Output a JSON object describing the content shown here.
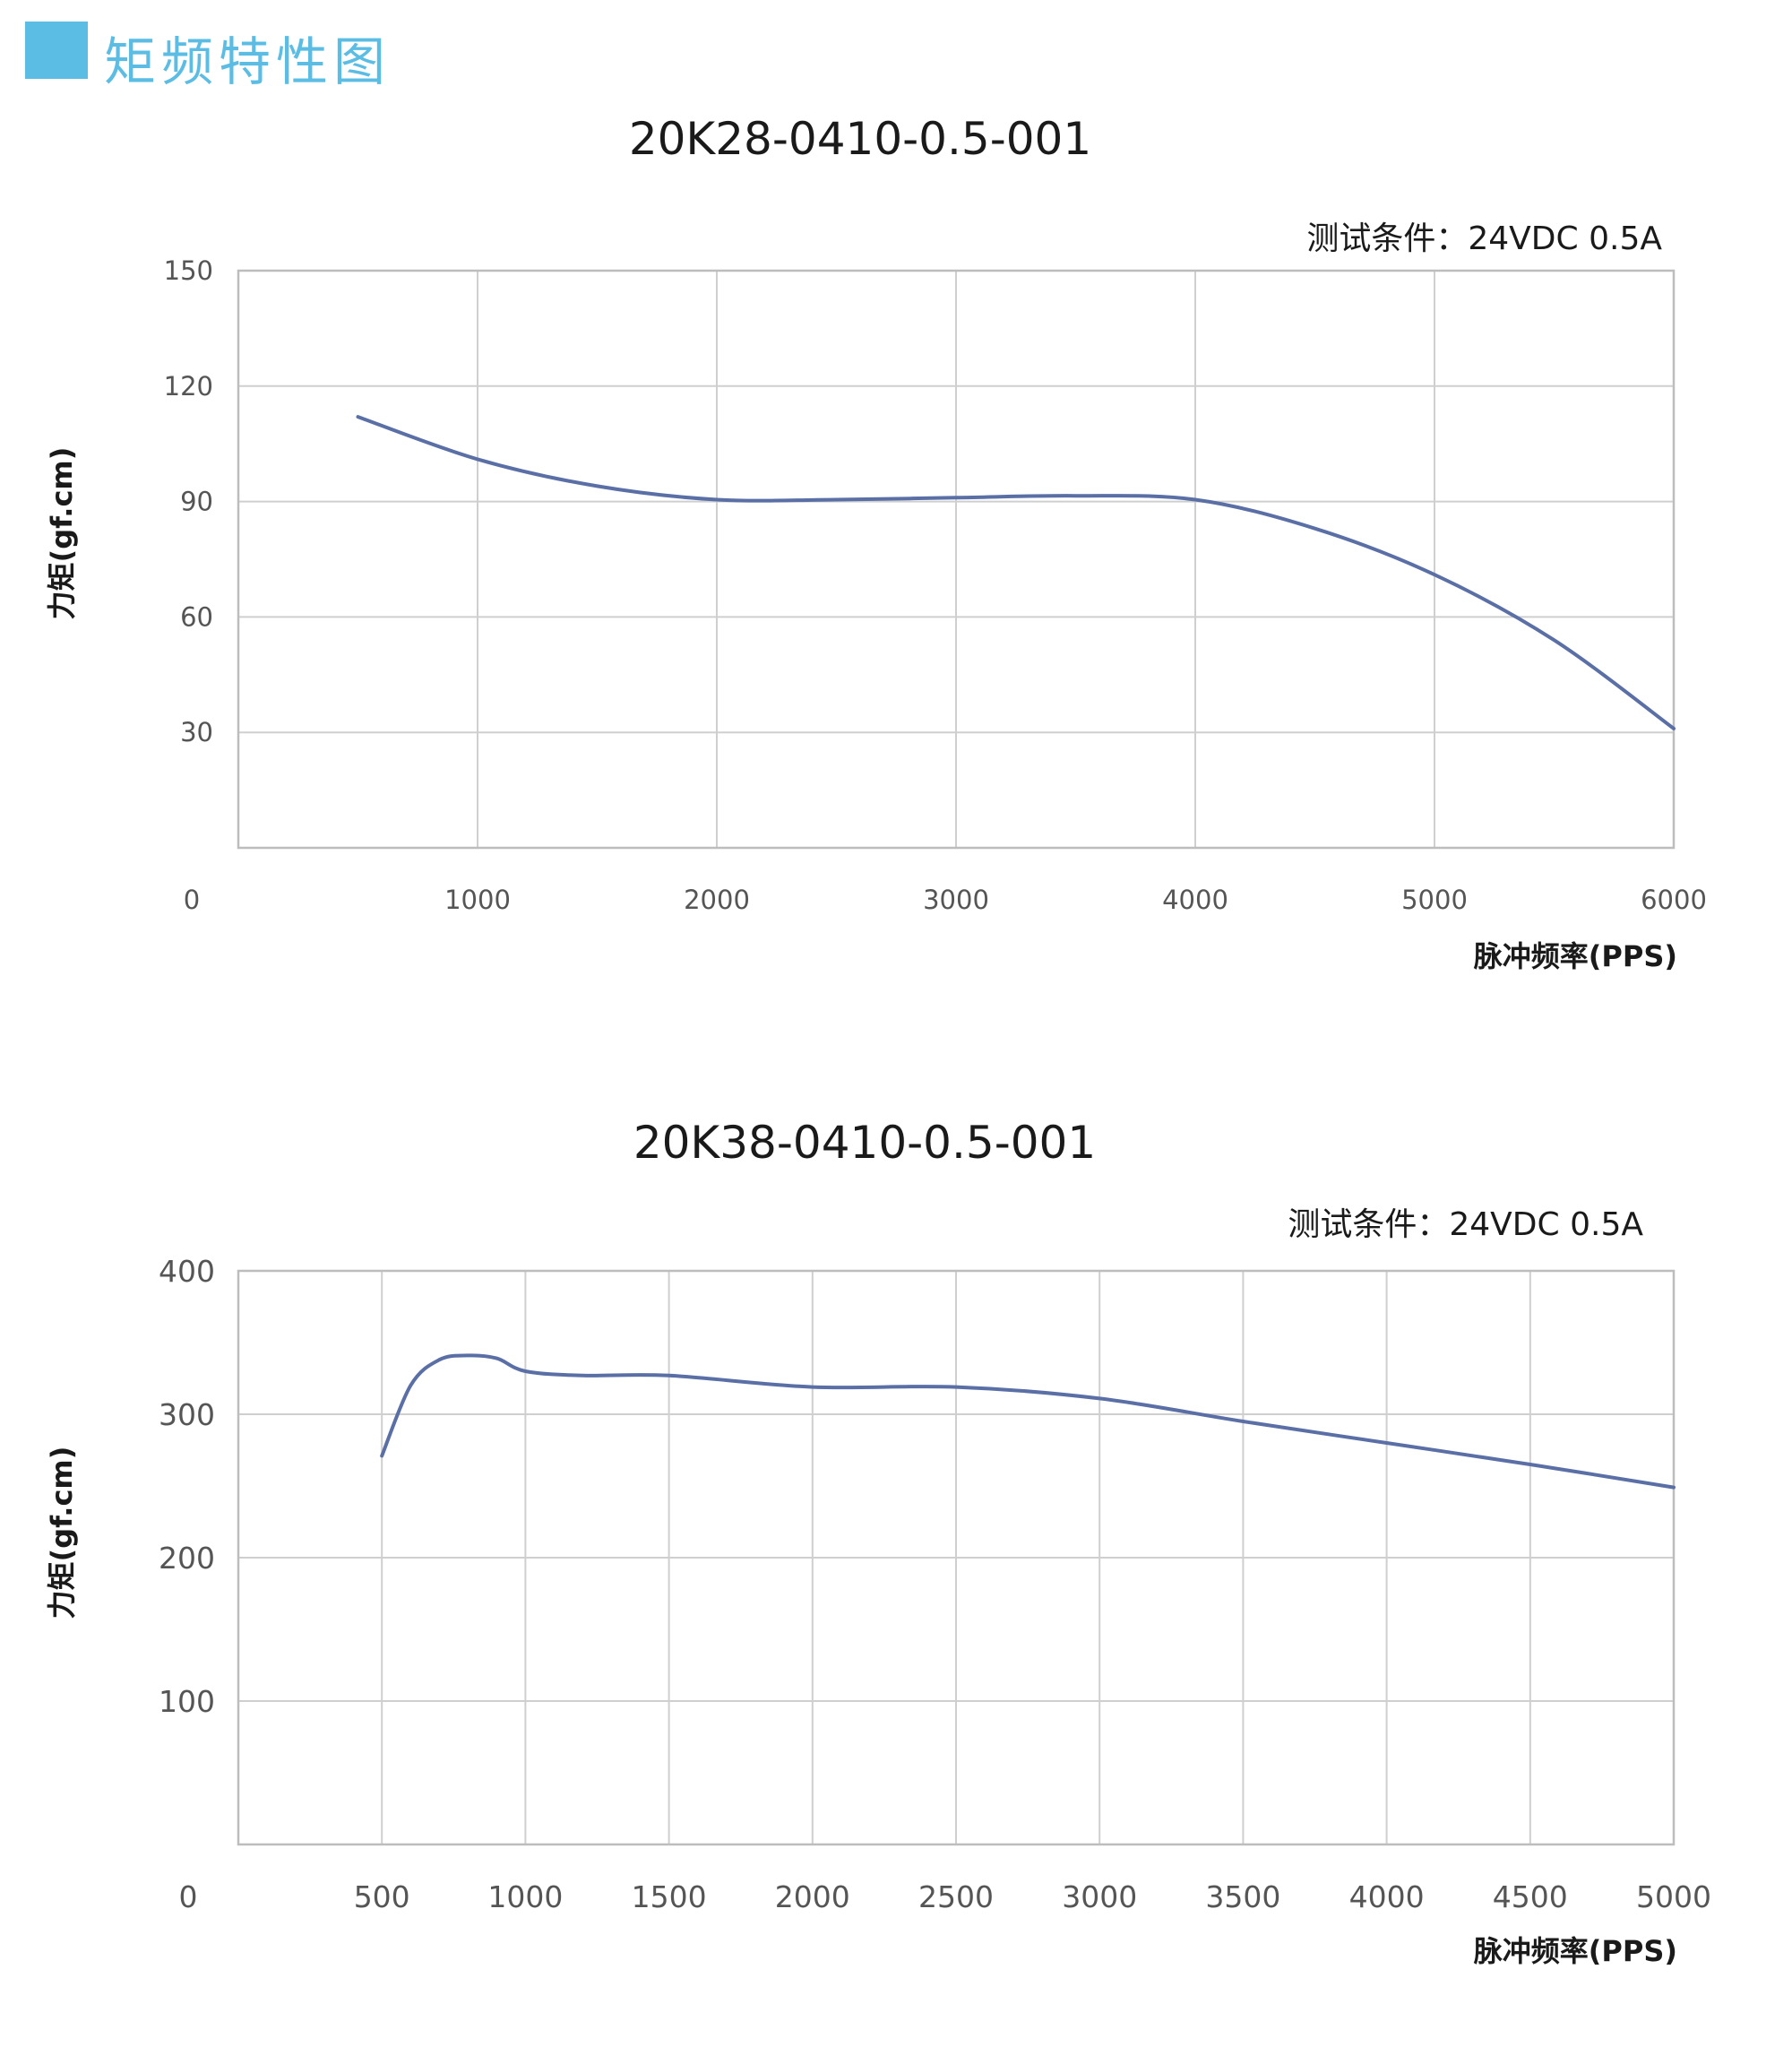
{
  "header": {
    "title": "矩频特性图",
    "color": "#5bbde4"
  },
  "chart_data": [
    {
      "type": "line",
      "title": "20K28-0410-0.5-001",
      "subtitle": "测试条件：24VDC    0.5A",
      "xlabel": "脉冲频率(PPS)",
      "ylabel": "力矩(gf.cm)",
      "xlim": [
        0,
        6000
      ],
      "ylim": [
        0,
        150
      ],
      "x_ticks": [
        0,
        1000,
        2000,
        3000,
        4000,
        5000,
        6000
      ],
      "y_ticks": [
        30,
        60,
        90,
        120,
        150
      ],
      "grid": true,
      "line_color": "#5a6fa5",
      "series": [
        {
          "x": [
            500,
            1000,
            1500,
            2000,
            2500,
            3000,
            3500,
            4000,
            4500,
            5000,
            5500,
            6000
          ],
          "values": [
            112,
            101,
            94,
            90.5,
            90.5,
            91,
            91.5,
            90.5,
            83,
            71,
            54,
            31
          ]
        }
      ]
    },
    {
      "type": "line",
      "title": "20K38-0410-0.5-001",
      "subtitle": "测试条件：24VDC    0.5A",
      "xlabel": "脉冲频率(PPS)",
      "ylabel": "力矩(gf.cm)",
      "xlim": [
        0,
        5000
      ],
      "ylim": [
        0,
        400
      ],
      "x_ticks": [
        0,
        500,
        1000,
        1500,
        2000,
        2500,
        3000,
        3500,
        4000,
        4500,
        5000
      ],
      "y_ticks": [
        100,
        200,
        300,
        400
      ],
      "grid": true,
      "line_color": "#5a6fa5",
      "series": [
        {
          "x": [
            500,
            600,
            700,
            800,
            900,
            1000,
            1200,
            1500,
            2000,
            2500,
            3000,
            3500,
            4000,
            4500,
            5000
          ],
          "values": [
            271,
            320,
            338,
            341,
            339,
            330,
            327,
            327,
            319,
            319,
            311,
            295,
            280,
            265,
            249
          ]
        }
      ]
    }
  ]
}
